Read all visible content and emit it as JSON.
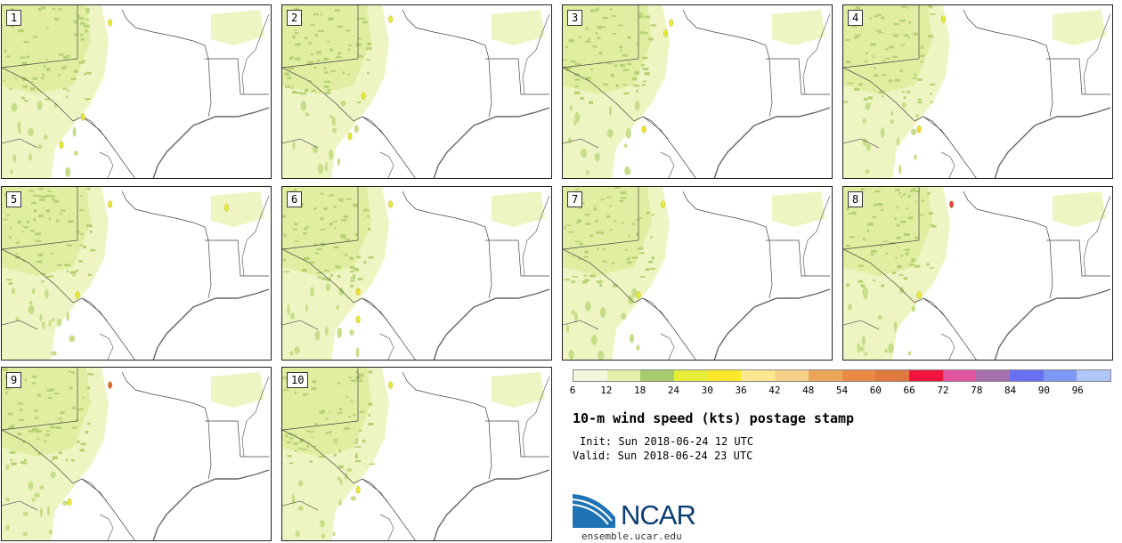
{
  "panels": [
    {
      "label": "1",
      "hotspots": [
        [
          0.4,
          0.1,
          "#ecec40"
        ],
        [
          0.3,
          0.64,
          "#eaea40"
        ],
        [
          0.22,
          0.8,
          "#e6ea40"
        ]
      ]
    },
    {
      "label": "2",
      "hotspots": [
        [
          0.4,
          0.08,
          "#ecec40"
        ],
        [
          0.3,
          0.52,
          "#eaea40"
        ],
        [
          0.25,
          0.75,
          "#e6ea40"
        ]
      ]
    },
    {
      "label": "3",
      "hotspots": [
        [
          0.4,
          0.1,
          "#ecec40"
        ],
        [
          0.3,
          0.71,
          "#f0e030"
        ],
        [
          0.38,
          0.16,
          "#ecec40"
        ]
      ]
    },
    {
      "label": "4",
      "hotspots": [
        [
          0.37,
          0.08,
          "#ecec40"
        ],
        [
          0.28,
          0.71,
          "#f0e030"
        ]
      ]
    },
    {
      "label": "5",
      "hotspots": [
        [
          0.4,
          0.1,
          "#ecec40"
        ],
        [
          0.83,
          0.12,
          "#ecec40"
        ],
        [
          0.28,
          0.62,
          "#eaea40"
        ]
      ]
    },
    {
      "label": "6",
      "hotspots": [
        [
          0.4,
          0.1,
          "#ecec40"
        ],
        [
          0.28,
          0.6,
          "#f0e030"
        ],
        [
          0.28,
          0.76,
          "#e6ea40"
        ]
      ]
    },
    {
      "label": "7",
      "hotspots": [
        [
          0.37,
          0.1,
          "#ecec40"
        ],
        [
          0.28,
          0.62,
          "#eaea40"
        ]
      ]
    },
    {
      "label": "8",
      "hotspots": [
        [
          0.4,
          0.1,
          "#e04040"
        ],
        [
          0.28,
          0.62,
          "#eaea40"
        ]
      ]
    },
    {
      "label": "9",
      "hotspots": [
        [
          0.4,
          0.1,
          "#e06040"
        ],
        [
          0.25,
          0.77,
          "#eaea40"
        ]
      ]
    },
    {
      "label": "10",
      "hotspots": [
        [
          0.4,
          0.1,
          "#ecec40"
        ],
        [
          0.28,
          0.7,
          "#eaea40"
        ]
      ]
    }
  ],
  "colorbar": {
    "colors": [
      "#f3f6dc",
      "#e3f0a8",
      "#a8cc6c",
      "#e6ee3a",
      "#fce82a",
      "#fce890",
      "#f8d088",
      "#eca458",
      "#ea8a44",
      "#e07840",
      "#f2143c",
      "#e054a0",
      "#a870b0",
      "#6870f0",
      "#7c98f4",
      "#b0c6f8"
    ],
    "ticks": [
      "6",
      "12",
      "18",
      "24",
      "30",
      "36",
      "42",
      "48",
      "54",
      "60",
      "66",
      "72",
      "78",
      "84",
      "90",
      "96"
    ]
  },
  "title": "10-m wind speed (kts) postage stamp",
  "init": "Init: Sun 2018-06-24 12 UTC",
  "valid": "Valid: Sun 2018-06-24 23 UTC",
  "logo_text": "NCAR",
  "url": "ensemble.ucar.edu"
}
